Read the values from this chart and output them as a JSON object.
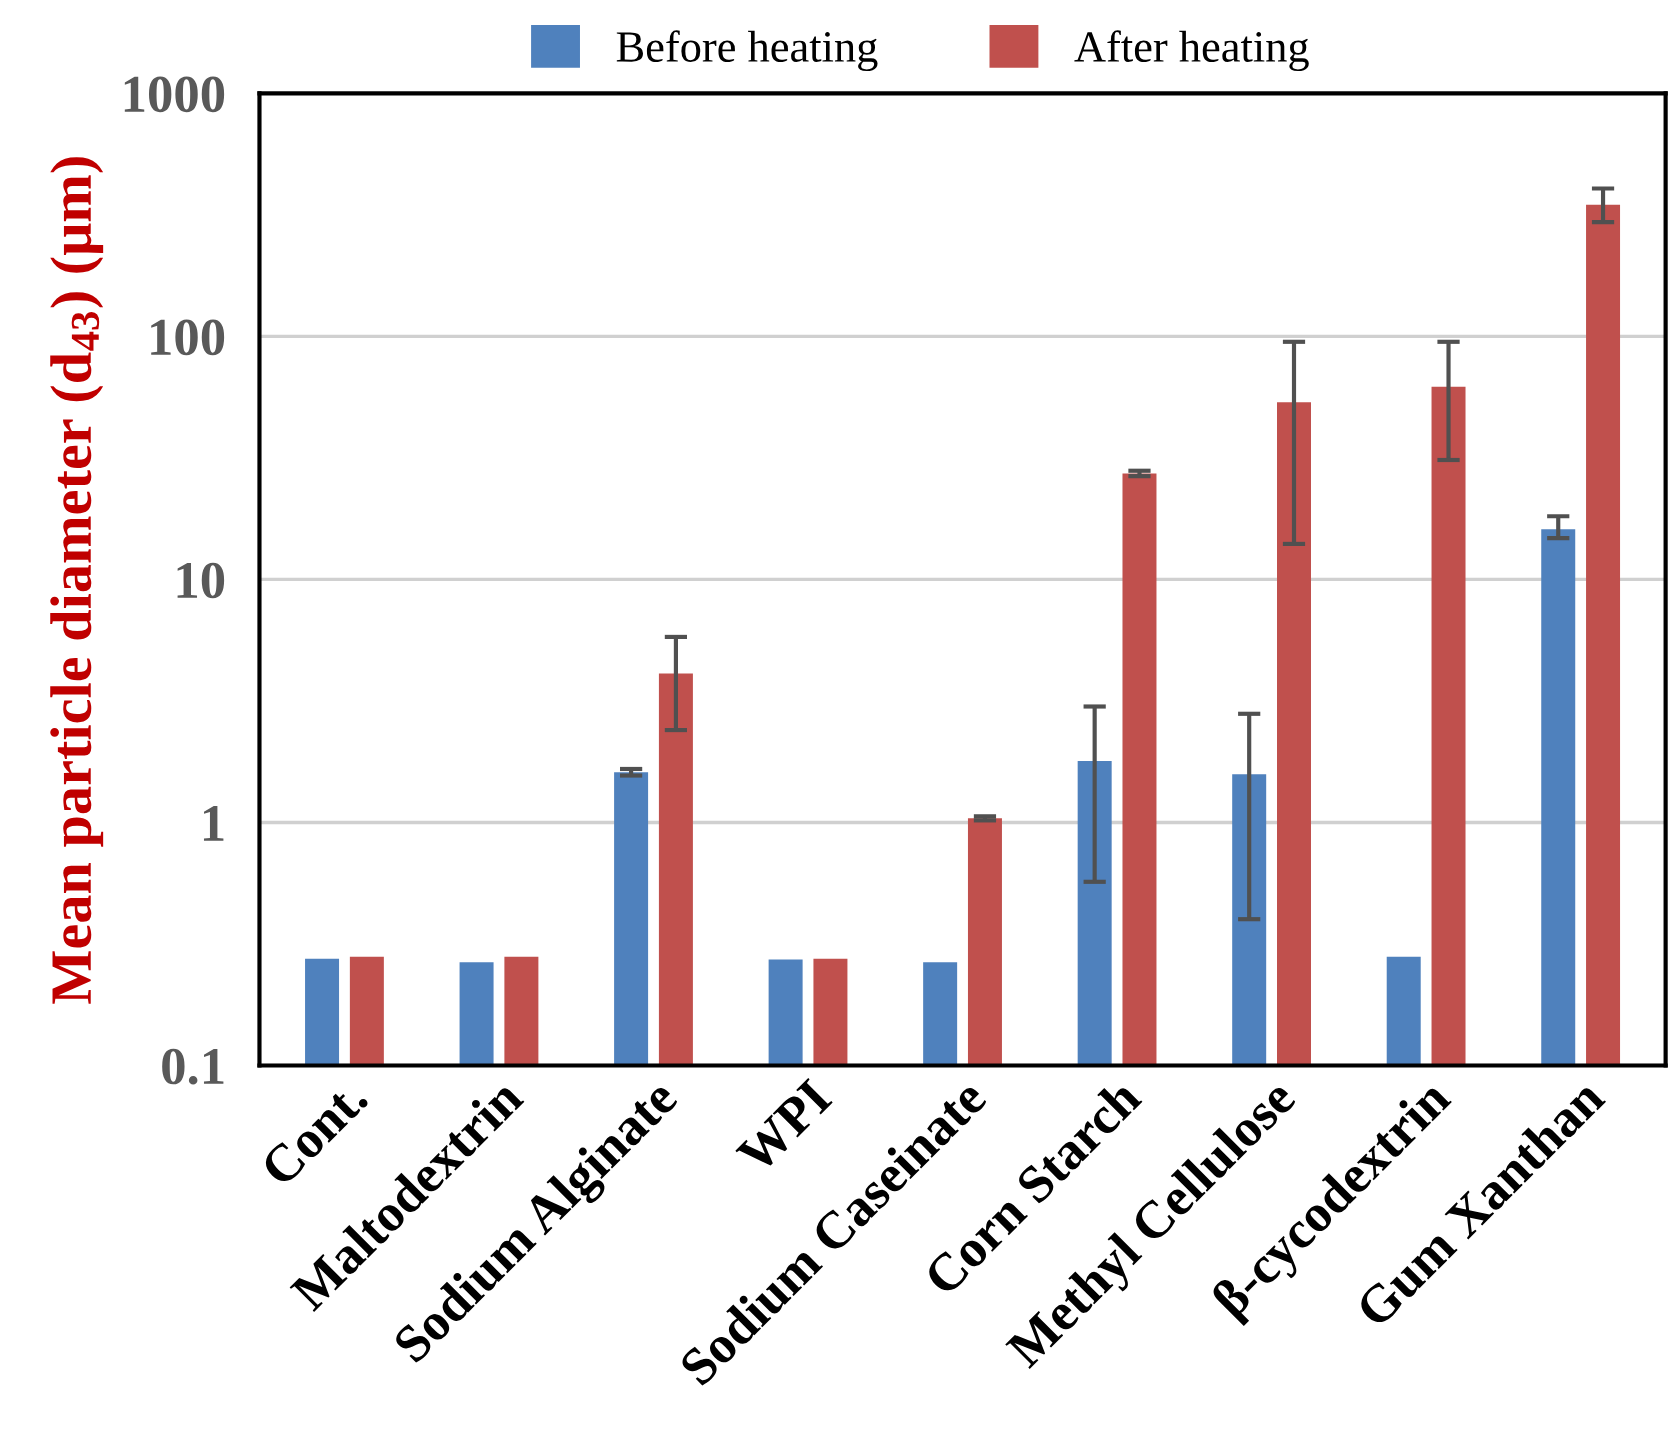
{
  "chart_data": {
    "type": "bar",
    "categories": [
      "Cont.",
      "Maltodextrin",
      "Sodium Alginate",
      "WPI",
      "Sodium Caseinate",
      "Corn Starch",
      "Methyl Cellulose",
      "β-cycodextrin",
      "Gum Xanthan"
    ],
    "series": [
      {
        "name": "Before heating",
        "color": "#4f81bd",
        "values": [
          0.275,
          0.266,
          1.61,
          0.273,
          0.266,
          1.79,
          1.58,
          0.28,
          16.1
        ],
        "errors": [
          null,
          null,
          0.05,
          null,
          null,
          [
            0.57,
            3.0
          ],
          [
            0.4,
            2.8
          ],
          null,
          [
            14.8,
            18.2
          ]
        ]
      },
      {
        "name": "After heating",
        "color": "#c0504d",
        "values": [
          0.28,
          0.28,
          4.1,
          0.275,
          1.04,
          27.3,
          53.6,
          62,
          348
        ],
        "errors": [
          null,
          null,
          [
            2.4,
            5.8
          ],
          null,
          0.02,
          [
            26.6,
            28.0
          ],
          [
            14.0,
            95
          ],
          [
            31,
            95
          ],
          [
            295,
            406
          ]
        ]
      }
    ],
    "ylabel": "Mean particle diameter (d$_{43}$) (μm)",
    "log": "y",
    "ylim": [
      0.1,
      1000
    ],
    "yticks": [
      0.1,
      1,
      10,
      100,
      1000
    ],
    "grid": "y",
    "legend": "top"
  }
}
